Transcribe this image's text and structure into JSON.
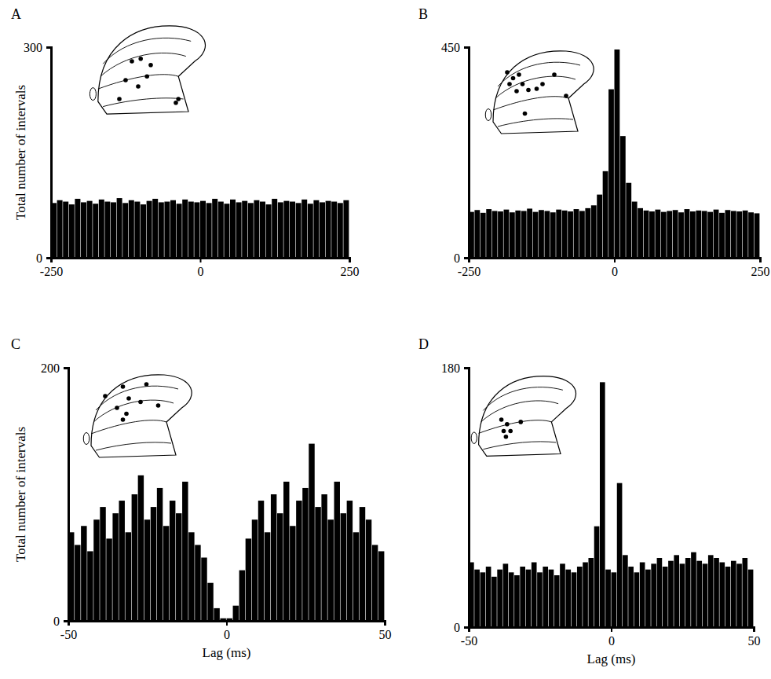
{
  "chart_data": [
    {
      "type": "histogram",
      "title": "A",
      "ylabel": "Total number of intervals",
      "color": "#000000",
      "xlim": [
        -250,
        250
      ],
      "xticks": [
        -250,
        0,
        250
      ],
      "ylim": [
        0,
        300
      ],
      "yticks": [
        0,
        300
      ],
      "grid": false,
      "bins": [
        -250,
        -240,
        -230,
        -220,
        -210,
        -200,
        -190,
        -180,
        -170,
        -160,
        -150,
        -140,
        -130,
        -120,
        -110,
        -100,
        -90,
        -80,
        -70,
        -60,
        -50,
        -40,
        -30,
        -20,
        -10,
        0,
        10,
        20,
        30,
        40,
        50,
        60,
        70,
        80,
        90,
        100,
        110,
        120,
        130,
        140,
        150,
        160,
        170,
        180,
        190,
        200,
        210,
        220,
        230,
        240,
        250
      ],
      "values": [
        78,
        82,
        80,
        76,
        84,
        79,
        81,
        77,
        83,
        80,
        79,
        85,
        78,
        82,
        80,
        76,
        81,
        84,
        79,
        80,
        82,
        77,
        83,
        80,
        79,
        81,
        78,
        84,
        80,
        77,
        83,
        79,
        81,
        78,
        82,
        80,
        76,
        84,
        79,
        81,
        80,
        78,
        83,
        77,
        82,
        79,
        81,
        80,
        78,
        82
      ]
    },
    {
      "type": "histogram",
      "title": "B",
      "color": "#000000",
      "xlim": [
        -250,
        250
      ],
      "xticks": [
        -250,
        0,
        250
      ],
      "ylim": [
        0,
        450
      ],
      "yticks": [
        0,
        450
      ],
      "grid": false,
      "bins": [
        -250,
        -240,
        -230,
        -220,
        -210,
        -200,
        -190,
        -180,
        -170,
        -160,
        -150,
        -140,
        -130,
        -120,
        -110,
        -100,
        -90,
        -80,
        -70,
        -60,
        -50,
        -40,
        -30,
        -20,
        -10,
        0,
        10,
        20,
        30,
        40,
        50,
        60,
        70,
        80,
        90,
        100,
        110,
        120,
        130,
        140,
        150,
        160,
        170,
        180,
        190,
        200,
        210,
        220,
        230,
        240,
        250
      ],
      "values": [
        98,
        102,
        96,
        104,
        100,
        99,
        103,
        97,
        101,
        100,
        105,
        98,
        102,
        100,
        97,
        103,
        101,
        99,
        104,
        100,
        106,
        112,
        135,
        185,
        360,
        445,
        260,
        160,
        120,
        106,
        101,
        99,
        103,
        98,
        100,
        102,
        97,
        104,
        99,
        101,
        100,
        98,
        103,
        96,
        102,
        100,
        99,
        101,
        97,
        95
      ]
    },
    {
      "type": "histogram",
      "title": "C",
      "xlabel": "Lag (ms)",
      "ylabel": "Total number of intervals",
      "color": "#000000",
      "xlim": [
        -50,
        50
      ],
      "xticks": [
        -50,
        0,
        50
      ],
      "ylim": [
        0,
        200
      ],
      "yticks": [
        0,
        200
      ],
      "grid": false,
      "bins": [
        -50,
        -48,
        -46,
        -44,
        -42,
        -40,
        -38,
        -36,
        -34,
        -32,
        -30,
        -28,
        -26,
        -24,
        -22,
        -20,
        -18,
        -16,
        -14,
        -12,
        -10,
        -8,
        -6,
        -4,
        -2,
        0,
        2,
        4,
        6,
        8,
        10,
        12,
        14,
        16,
        18,
        20,
        22,
        24,
        26,
        28,
        30,
        32,
        34,
        36,
        38,
        40,
        42,
        44,
        46,
        48,
        50
      ],
      "values": [
        70,
        60,
        75,
        55,
        80,
        90,
        65,
        85,
        95,
        70,
        100,
        115,
        80,
        90,
        105,
        75,
        95,
        85,
        110,
        70,
        60,
        50,
        30,
        10,
        2,
        2,
        12,
        40,
        65,
        80,
        95,
        70,
        100,
        85,
        110,
        75,
        95,
        105,
        140,
        90,
        100,
        80,
        110,
        85,
        95,
        70,
        90,
        80,
        60,
        55
      ]
    },
    {
      "type": "histogram",
      "title": "D",
      "xlabel": "Lag (ms)",
      "color": "#000000",
      "xlim": [
        -50,
        50
      ],
      "xticks": [
        -50,
        0,
        50
      ],
      "ylim": [
        0,
        180
      ],
      "yticks": [
        0,
        180
      ],
      "grid": false,
      "bins": [
        -50,
        -48,
        -46,
        -44,
        -42,
        -40,
        -38,
        -36,
        -34,
        -32,
        -30,
        -28,
        -26,
        -24,
        -22,
        -20,
        -18,
        -16,
        -14,
        -12,
        -10,
        -8,
        -6,
        -4,
        -2,
        0,
        2,
        4,
        6,
        8,
        10,
        12,
        14,
        16,
        18,
        20,
        22,
        24,
        26,
        28,
        30,
        32,
        34,
        36,
        38,
        40,
        42,
        44,
        46,
        48,
        50
      ],
      "values": [
        45,
        40,
        38,
        42,
        35,
        40,
        44,
        38,
        36,
        42,
        40,
        45,
        38,
        42,
        40,
        36,
        44,
        40,
        38,
        42,
        45,
        48,
        70,
        170,
        40,
        38,
        100,
        50,
        42,
        38,
        45,
        40,
        44,
        48,
        42,
        46,
        50,
        44,
        48,
        52,
        46,
        44,
        50,
        48,
        45,
        42,
        46,
        44,
        48,
        40
      ]
    }
  ]
}
